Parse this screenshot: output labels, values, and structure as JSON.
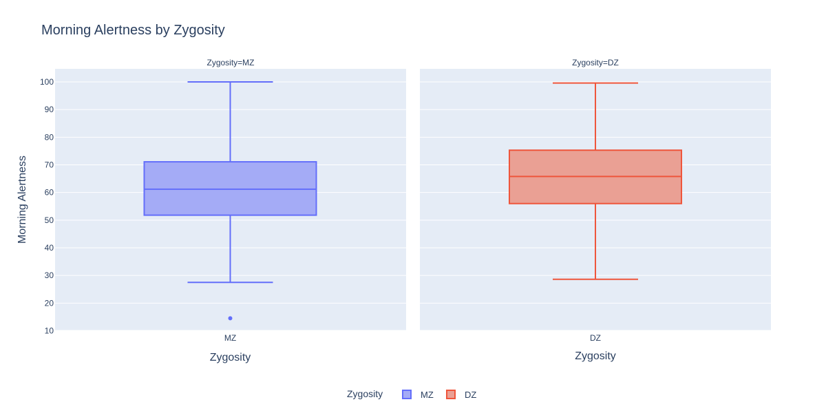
{
  "chart_data": {
    "type": "box",
    "title": "Morning Alertness by Zygosity",
    "ylabel": "Morning Alertness",
    "ylim": [
      10,
      100
    ],
    "y_ticks": [
      10,
      20,
      30,
      40,
      50,
      60,
      70,
      80,
      90,
      100
    ],
    "grid": true,
    "legend": {
      "title": "Zygosity",
      "position": "bottom-center"
    },
    "facets": [
      {
        "label": "Zygosity=MZ",
        "category": "MZ",
        "xlabel": "Zygosity",
        "name": "MZ",
        "color": "#636efa",
        "fill": "#a4abf6",
        "lower_whisker": 27.5,
        "q1": 51.8,
        "median": 61.2,
        "q3": 71.1,
        "upper_whisker": 100,
        "outliers": [
          14.5
        ]
      },
      {
        "label": "Zygosity=DZ",
        "category": "DZ",
        "xlabel": "Zygosity",
        "name": "DZ",
        "color": "#ef553b",
        "fill": "#eaa094",
        "lower_whisker": 28.6,
        "q1": 56.0,
        "median": 65.8,
        "q3": 75.3,
        "upper_whisker": 99.6,
        "outliers": []
      }
    ]
  }
}
